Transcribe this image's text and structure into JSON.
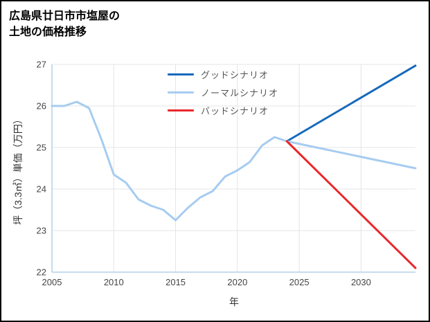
{
  "header": {
    "title_line1": "広島県廿日市市塩屋の",
    "title_line2": "土地の価格推移"
  },
  "chart_data": {
    "type": "line",
    "title": "広島県廿日市市塩屋の土地の価格推移",
    "xlabel": "年",
    "ylabel": "坪（3.3㎡）単価（万円）",
    "xlim": [
      2005,
      2034.4
    ],
    "ylim": [
      22,
      27
    ],
    "xticks": [
      2005,
      2010,
      2015,
      2020,
      2025,
      2030
    ],
    "yticks": [
      22,
      23,
      24,
      25,
      26,
      27
    ],
    "grid": true,
    "legend_position": "top-inside",
    "colors": {
      "good": "#1669bb",
      "normal": "#a6ccf0",
      "bad": "#e8282b",
      "grid": "#e4e4e4",
      "axis": "#b3cfe9",
      "tick_text": "#444444",
      "legend_text": "#555555"
    },
    "series": [
      {
        "id": "good",
        "name": "グッドシナリオ",
        "color": "#1669bb",
        "x": [
          2024,
          2034.4
        ],
        "values": [
          25.15,
          26.97
        ]
      },
      {
        "id": "normal",
        "name": "ノーマルシナリオ",
        "color": "#a6ccf0",
        "x": [
          2005,
          2006,
          2007,
          2008,
          2009,
          2010,
          2011,
          2012,
          2013,
          2014,
          2015,
          2016,
          2017,
          2018,
          2019,
          2020,
          2021,
          2022,
          2023,
          2024,
          2034.4
        ],
        "values": [
          26.0,
          26.0,
          26.1,
          25.95,
          25.2,
          24.35,
          24.15,
          23.75,
          23.6,
          23.5,
          23.25,
          23.55,
          23.8,
          23.95,
          24.3,
          24.45,
          24.65,
          25.05,
          25.25,
          25.15,
          24.5
        ]
      },
      {
        "id": "bad",
        "name": "バッドシナリオ",
        "color": "#e8282b",
        "x": [
          2024,
          2034.4
        ],
        "values": [
          25.15,
          22.1
        ]
      }
    ]
  }
}
